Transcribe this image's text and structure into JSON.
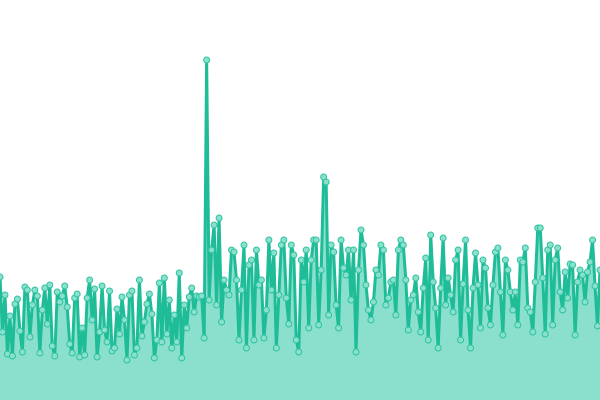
{
  "chart_data": {
    "type": "area",
    "title": "",
    "xlabel": "",
    "ylabel": "",
    "ylim": [
      0,
      400
    ],
    "grid": false,
    "legend": "none",
    "colors": {
      "line": "#1fbc98",
      "fill": "#8ae0cd",
      "marker_fill": "#8ae0cd",
      "marker_stroke": "#2cc39f"
    },
    "series": [
      {
        "values": [
          123,
          68,
          105,
          46,
          84,
          44,
          96,
          101,
          69,
          48,
          113,
          110,
          63,
          95,
          110,
          104,
          47,
          90,
          112,
          76,
          115,
          54,
          44,
          108,
          98,
          104,
          114,
          93,
          56,
          47,
          102,
          106,
          43,
          72,
          45,
          102,
          120,
          80,
          111,
          43,
          68,
          114,
          70,
          58,
          109,
          49,
          52,
          91,
          66,
          103,
          80,
          40,
          105,
          109,
          45,
          52,
          120,
          64,
          78,
          96,
          106,
          86,
          42,
          60,
          117,
          58,
          122,
          66,
          100,
          52,
          85,
          58,
          127,
          42,
          95,
          72,
          103,
          112,
          88,
          104,
          103,
          104,
          62,
          340,
          100,
          150,
          175,
          95,
          182,
          78,
          120,
          110,
          105,
          150,
          148,
          120,
          60,
          110,
          155,
          52,
          135,
          140,
          60,
          150,
          115,
          120,
          62,
          90,
          160,
          110,
          147,
          52,
          105,
          155,
          160,
          102,
          76,
          155,
          145,
          60,
          48,
          140,
          118,
          150,
          72,
          140,
          160,
          160,
          75,
          130,
          223,
          218,
          85,
          155,
          148,
          95,
          72,
          160,
          132,
          125,
          150,
          100,
          150,
          48,
          130,
          170,
          155,
          115,
          90,
          80,
          98,
          130,
          125,
          155,
          150,
          95,
          102,
          118,
          120,
          85,
          150,
          160,
          155,
          120,
          70,
          100,
          105,
          122,
          88,
          68,
          112,
          142,
          60,
          165,
          118,
          92,
          52,
          112,
          162,
          95,
          122,
          105,
          88,
          140,
          150,
          60,
          116,
          160,
          90,
          52,
          112,
          147,
          115,
          72,
          140,
          132,
          92,
          75,
          115,
          148,
          152,
          108,
          65,
          140,
          130,
          108,
          90,
          108,
          75,
          140,
          138,
          152,
          92,
          88,
          68,
          118,
          172,
          172,
          122,
          66,
          150,
          155,
          75,
          140,
          152,
          108,
          90,
          128,
          102,
          136,
          135,
          65,
          118,
          130,
          125,
          98,
          128,
          138,
          160,
          114,
          74,
          130
        ]
      }
    ]
  }
}
